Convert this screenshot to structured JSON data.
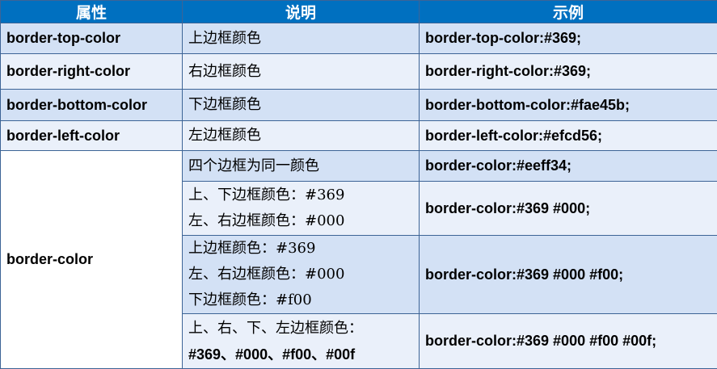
{
  "headers": [
    "属性",
    "说明",
    "示例"
  ],
  "rows": [
    {
      "property": "border-top-color",
      "description": [
        "上边框颜色"
      ],
      "example": "border-top-color:#369;"
    },
    {
      "property": "border-right-color",
      "description": [
        "右边框颜色"
      ],
      "example": "border-right-color:#369;"
    },
    {
      "property": "border-bottom-color",
      "description": [
        "下边框颜色"
      ],
      "example": "border-bottom-color:#fae45b;"
    },
    {
      "property": "border-left-color",
      "description": [
        "左边框颜色"
      ],
      "example": "border-left-color:#efcd56;"
    }
  ],
  "border_color": {
    "property": "border-color",
    "variants": [
      {
        "description": [
          "四个边框为同一颜色"
        ],
        "example": "border-color:#eeff34;"
      },
      {
        "description": [
          "上、下边框颜色：#369",
          "左、右边框颜色：#000"
        ],
        "example": "border-color:#369 #000;"
      },
      {
        "description": [
          "上边框颜色：#369",
          "左、右边框颜色：#000",
          "下边框颜色：#f00"
        ],
        "example": "border-color:#369 #000 #f00;"
      },
      {
        "description": [
          "上、右、下、左边框颜色：",
          "#369、#000、#f00、#00f"
        ],
        "example": "border-color:#369 #000 #f00 #00f;"
      }
    ]
  },
  "colors": {
    "header_bg": "#0070c0",
    "row_dark": "#d3e1f5",
    "row_light": "#eaf0fa",
    "border": "#3d6496"
  }
}
